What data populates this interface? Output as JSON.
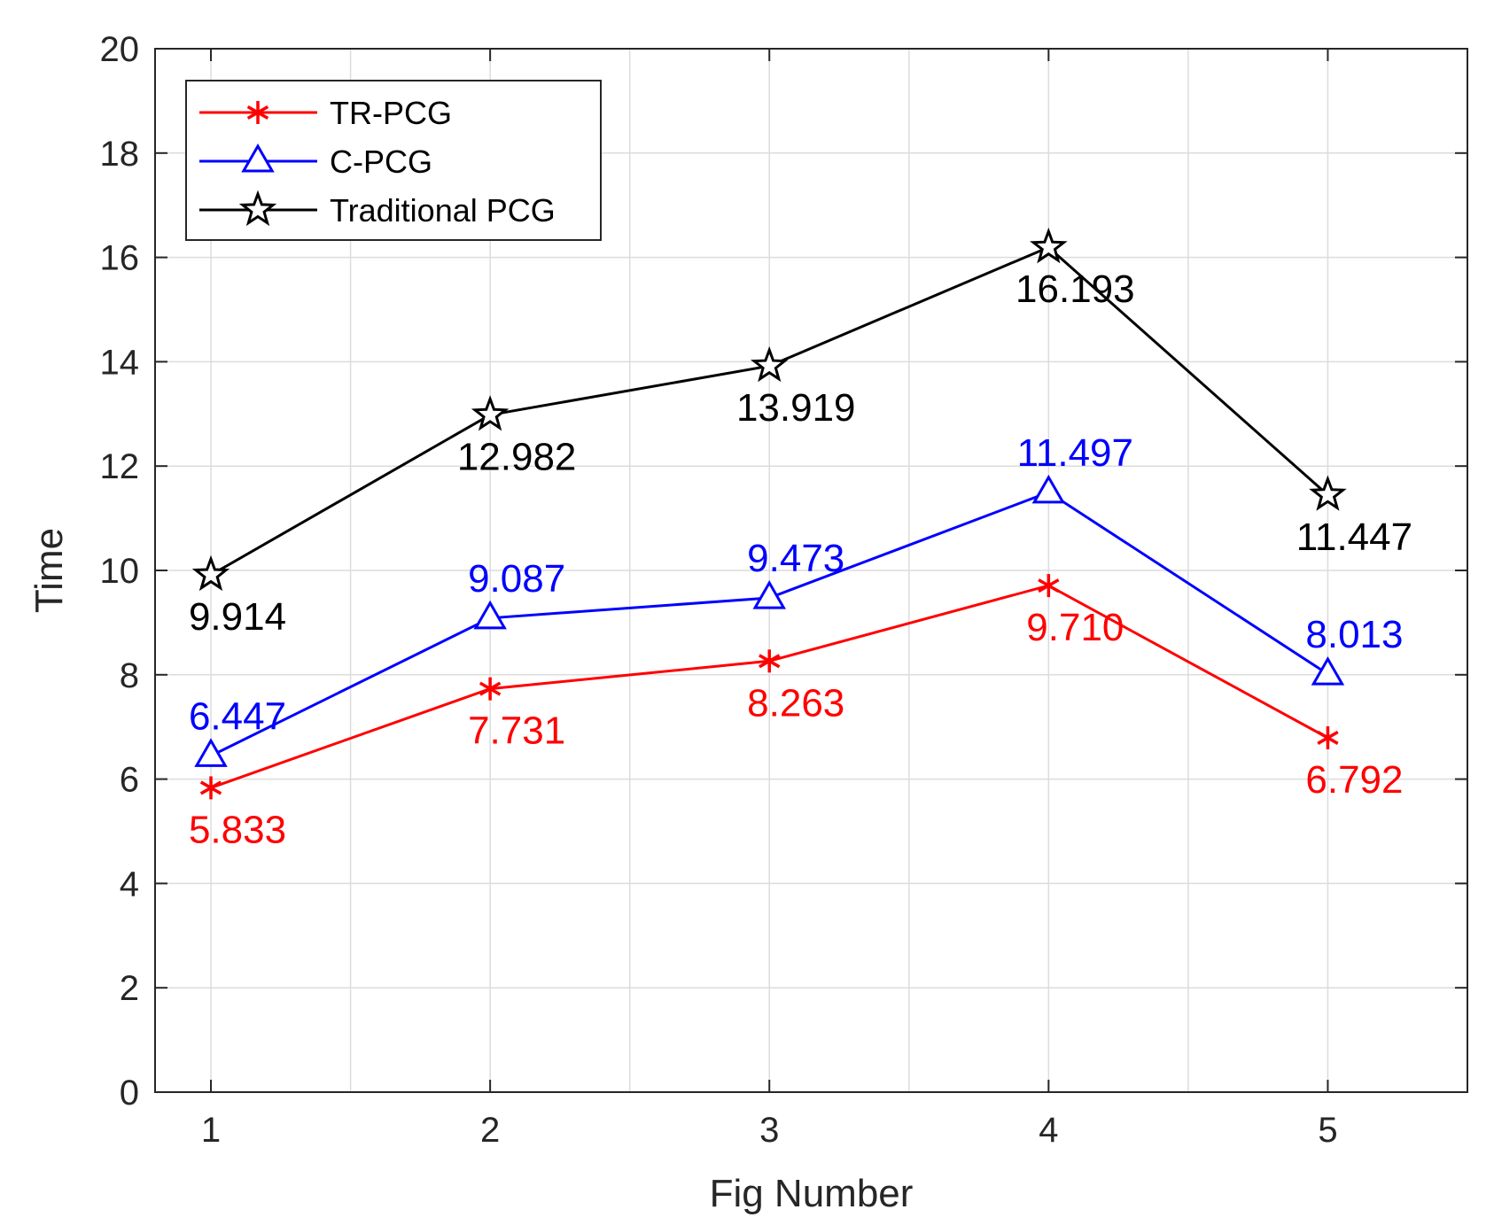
{
  "chart_data": {
    "type": "line",
    "title": "",
    "xlabel": "Fig Number",
    "ylabel": "Time",
    "x": [
      1,
      2,
      3,
      4,
      5
    ],
    "xlim": [
      0.8,
      5.5
    ],
    "ylim": [
      0,
      20
    ],
    "xticks": [
      1,
      2,
      3,
      4,
      5
    ],
    "yticks": [
      0,
      2,
      4,
      6,
      8,
      10,
      12,
      14,
      16,
      18,
      20
    ],
    "grid": true,
    "legend_position": "top-left",
    "series": [
      {
        "name": "TR-PCG",
        "color": "#ff0000",
        "marker": "asterisk",
        "values": [
          5.833,
          7.731,
          8.263,
          9.71,
          6.792
        ],
        "labels": [
          "5.833",
          "7.731",
          "8.263",
          "9.710",
          "6.792"
        ],
        "label_position": "below"
      },
      {
        "name": "C-PCG",
        "color": "#0000ff",
        "marker": "triangle",
        "values": [
          6.447,
          9.087,
          9.473,
          11.497,
          8.013
        ],
        "labels": [
          "6.447",
          "9.087",
          "9.473",
          "11.497",
          "8.013"
        ],
        "label_position": "above"
      },
      {
        "name": "Traditional PCG",
        "color": "#000000",
        "marker": "star",
        "values": [
          9.914,
          12.982,
          13.919,
          16.193,
          11.447
        ],
        "labels": [
          "9.914",
          "12.982",
          "13.919",
          "16.193",
          "11.447"
        ],
        "label_position": "below"
      }
    ]
  }
}
